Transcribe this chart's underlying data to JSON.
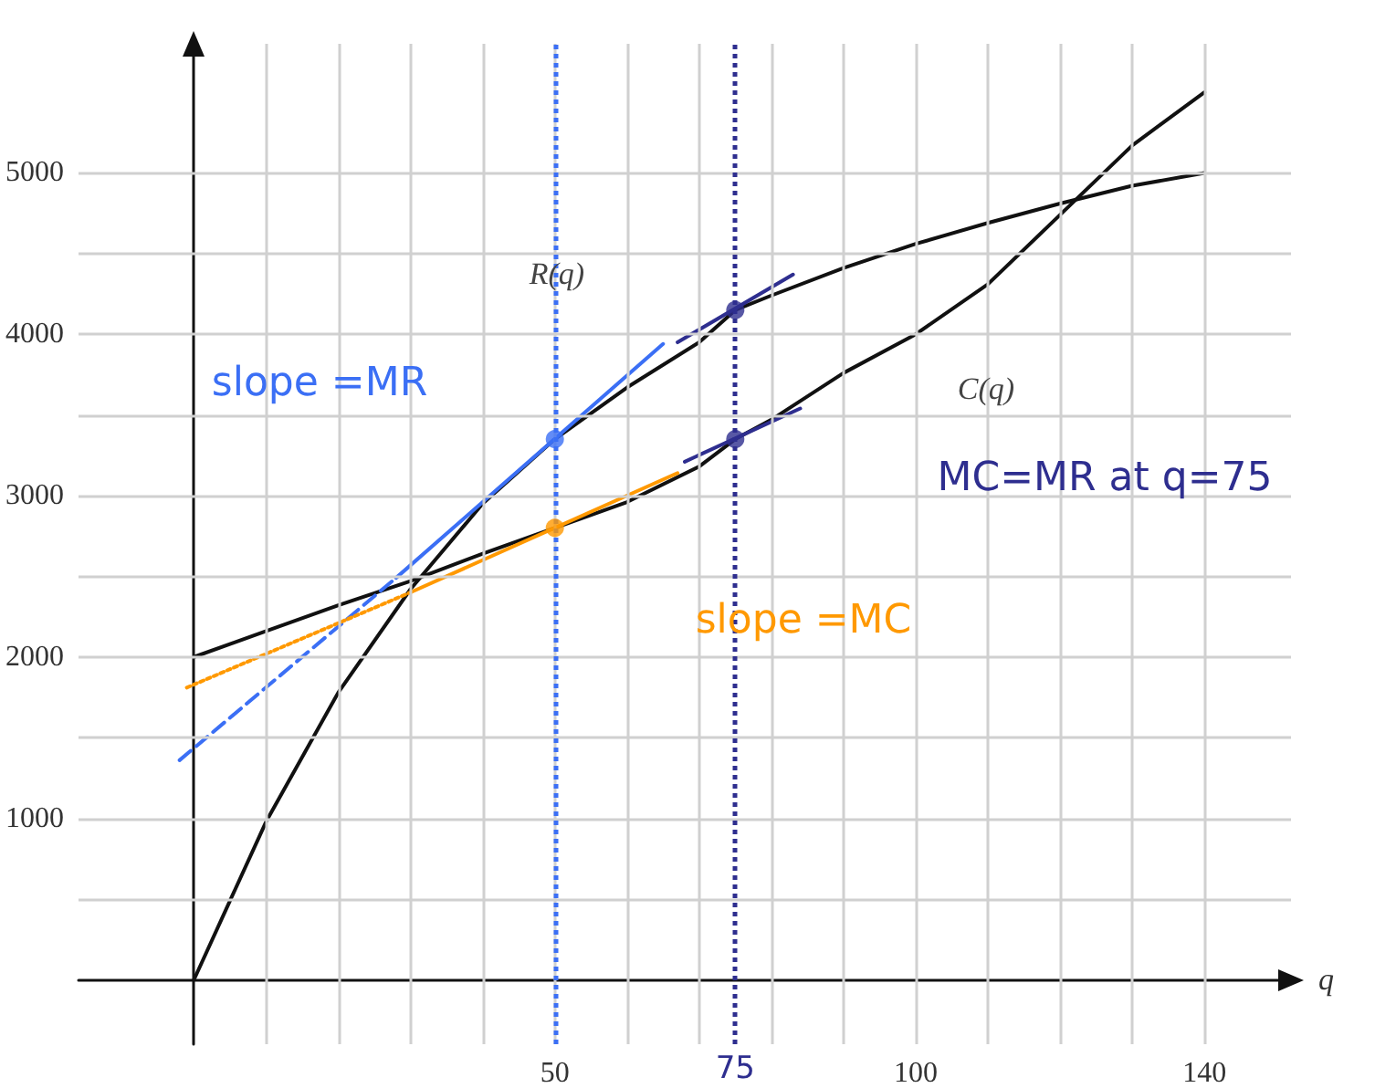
{
  "chart_data": {
    "type": "line",
    "xlabel": "q",
    "xlim": [
      -16,
      152
    ],
    "ylim": [
      -400,
      5800
    ],
    "xticks": [
      {
        "value": 10,
        "label": null
      },
      {
        "value": 20,
        "label": null
      },
      {
        "value": 30,
        "label": null
      },
      {
        "value": 40,
        "label": null
      },
      50,
      {
        "value": 60,
        "label": null
      },
      {
        "value": 70,
        "label": null
      },
      {
        "value": 80,
        "label": null
      },
      {
        "value": 90,
        "label": null
      },
      100,
      {
        "value": 110,
        "label": null
      },
      {
        "value": 120,
        "label": null
      },
      {
        "value": 130,
        "label": null
      },
      140
    ],
    "yticks": [
      {
        "value": 500,
        "label": null
      },
      1000,
      {
        "value": 1500,
        "label": null
      },
      2000,
      {
        "value": 2500,
        "label": null
      },
      3000,
      {
        "value": 3500,
        "label": null
      },
      4000,
      {
        "value": 4500,
        "label": null
      },
      5000
    ],
    "grid": true,
    "marker": "none",
    "line_style": "solid",
    "series": [
      {
        "color": "#111111",
        "x": [
          0,
          10,
          20,
          30,
          40,
          50,
          60,
          70,
          75,
          80,
          90,
          100,
          110,
          120,
          130,
          140
        ],
        "values": [
          0,
          980,
          1780,
          2420,
          2950,
          3350,
          3670,
          3950,
          4150,
          4240,
          4410,
          4560,
          4690,
          4810,
          4920,
          5000
        ]
      },
      {
        "color": "#111111",
        "x": [
          0,
          10,
          20,
          30,
          40,
          50,
          60,
          70,
          75,
          80,
          90,
          100,
          110,
          120,
          130,
          140
        ],
        "values": [
          2000,
          2160,
          2320,
          2470,
          2640,
          2800,
          2960,
          3180,
          3350,
          3470,
          3760,
          4000,
          4310,
          4740,
          5170,
          5500
        ]
      },
      {
        "color": "#3b6ff5",
        "line_style": "dashed",
        "x": [
          -2,
          28
        ],
        "values": [
          1360,
          2490
        ]
      },
      {
        "color": "#3b6ff5",
        "x": [
          28,
          65
        ],
        "values": [
          2490,
          3940
        ]
      },
      {
        "color": "#ff9900",
        "line_style": "dotted",
        "x": [
          -1,
          30
        ],
        "values": [
          1810,
          2400
        ]
      },
      {
        "color": "#ff9900",
        "x": [
          30,
          67
        ],
        "values": [
          2400,
          3140
        ]
      },
      {
        "color": "#2e2e8f",
        "x": [
          67,
          83
        ],
        "values": [
          3950,
          4370
        ]
      },
      {
        "color": "#2e2e8f",
        "x": [
          68,
          84
        ],
        "values": [
          3210,
          3540
        ]
      },
      {
        "type": "scatter",
        "marker": "circle",
        "x": [
          50,
          50,
          75,
          75
        ],
        "values": [
          3350,
          2800,
          4150,
          3350
        ],
        "colors": [
          "#3b6ff5",
          "#ff9900",
          "#2e2e8f",
          "#2e2e8f"
        ]
      }
    ],
    "ref_lines": [
      {
        "axis": "x",
        "value": 50,
        "label": null,
        "color": "#3b6ff5",
        "line_style": "dotted"
      },
      {
        "axis": "x",
        "value": 75,
        "label": "75",
        "color": "#2e2e8f",
        "line_style": "dotted"
      }
    ],
    "annotations": [
      "R(q)",
      "C(q)",
      "slope =MR",
      "slope =MC",
      "MC=MR at q=75"
    ]
  }
}
